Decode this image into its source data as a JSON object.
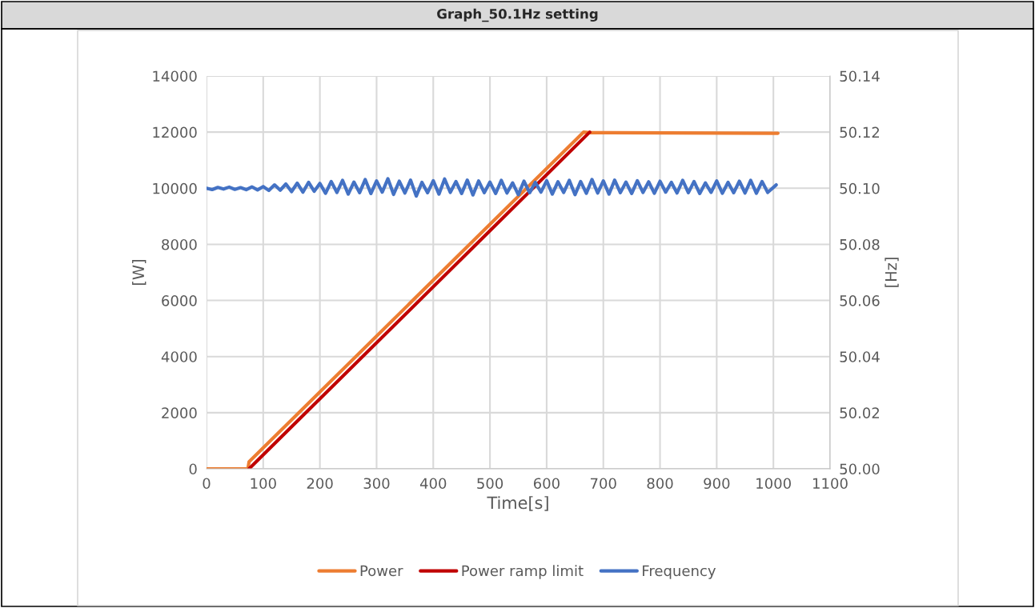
{
  "chart_data": {
    "type": "line",
    "title": "Graph_50.1Hz setting",
    "xlabel": "Time[s]",
    "ylabel": "[W]",
    "y2label": "[Hz]",
    "xlim": [
      0,
      1100
    ],
    "xticks": [
      0,
      100,
      200,
      300,
      400,
      500,
      600,
      700,
      800,
      900,
      1000,
      1100
    ],
    "ylim": [
      0,
      14000
    ],
    "yticks": [
      0,
      2000,
      4000,
      6000,
      8000,
      10000,
      12000,
      14000
    ],
    "y2lim": [
      50.0,
      50.14
    ],
    "y2ticks": [
      {
        "value": 50.0,
        "label": "50.00"
      },
      {
        "value": 50.02,
        "label": "50.02"
      },
      {
        "value": 50.04,
        "label": "50.04"
      },
      {
        "value": 50.06,
        "label": "50.06"
      },
      {
        "value": 50.08,
        "label": "50.08"
      },
      {
        "value": 50.1,
        "label": "50.10"
      },
      {
        "value": 50.12,
        "label": "50.12"
      },
      {
        "value": 50.14,
        "label": "50.14"
      }
    ],
    "grid": true,
    "legend": "bottom",
    "marker": "none",
    "line_style": "solid",
    "series": [
      {
        "name": "Power",
        "color": "#ed7d31",
        "x": [
          0,
          73,
          75,
          665,
          676,
          1008
        ],
        "values": [
          0,
          0,
          250,
          12000,
          11980,
          11960
        ]
      },
      {
        "name": "Power ramp limit",
        "color": "#c00000",
        "x": [
          75,
          676
        ],
        "values": [
          0,
          12000
        ]
      },
      {
        "name": "Frequency",
        "color": "#4472c4",
        "axis": "y2",
        "x": [
          0,
          10,
          20,
          30,
          40,
          50,
          60,
          70,
          80,
          90,
          100,
          110,
          120,
          130,
          140,
          150,
          160,
          170,
          180,
          190,
          200,
          210,
          220,
          230,
          240,
          250,
          260,
          270,
          280,
          290,
          300,
          310,
          320,
          330,
          340,
          350,
          360,
          370,
          380,
          390,
          400,
          410,
          420,
          430,
          440,
          450,
          460,
          470,
          480,
          490,
          500,
          510,
          520,
          530,
          540,
          550,
          560,
          570,
          580,
          590,
          600,
          610,
          620,
          630,
          640,
          650,
          660,
          670,
          680,
          690,
          700,
          710,
          720,
          730,
          740,
          750,
          760,
          770,
          780,
          790,
          800,
          810,
          820,
          830,
          840,
          850,
          860,
          870,
          880,
          890,
          900,
          910,
          920,
          930,
          940,
          950,
          960,
          970,
          980,
          990,
          1005
        ],
        "values": [
          50.1,
          50.0995,
          50.1003,
          50.0997,
          50.1004,
          50.0996,
          50.1002,
          50.0995,
          50.1005,
          50.0994,
          50.1006,
          50.0992,
          50.1012,
          50.0993,
          50.1015,
          50.0988,
          50.1018,
          50.0986,
          50.1021,
          50.0989,
          50.1017,
          50.0982,
          50.1024,
          50.0985,
          50.1028,
          50.0979,
          50.1022,
          50.0984,
          50.1031,
          50.0981,
          50.1026,
          50.0986,
          50.1034,
          50.0978,
          50.1025,
          50.0983,
          50.1029,
          50.0972,
          50.1021,
          50.0984,
          50.1027,
          50.0979,
          50.1033,
          50.0985,
          50.1024,
          50.0981,
          50.1029,
          50.0976,
          50.1026,
          50.0984,
          50.1022,
          50.0981,
          50.1028,
          50.0983,
          50.1019,
          50.0977,
          50.1025,
          50.0984,
          50.1021,
          50.0986,
          50.1027,
          50.0979,
          50.1023,
          50.0985,
          50.1028,
          50.0977,
          50.1024,
          50.0982,
          50.1031,
          50.0983,
          50.1026,
          50.0979,
          50.1029,
          50.0984,
          50.1022,
          50.0981,
          50.1027,
          50.0985,
          50.1023,
          50.0982,
          50.1025,
          50.0986,
          50.1021,
          50.0983,
          50.1028,
          50.0984,
          50.1024,
          50.0981,
          50.1019,
          50.0985,
          50.1026,
          50.0982,
          50.1021,
          50.0984,
          50.1025,
          50.0983,
          50.1028,
          50.0982,
          50.1024,
          50.0985,
          50.1012
        ]
      }
    ]
  }
}
